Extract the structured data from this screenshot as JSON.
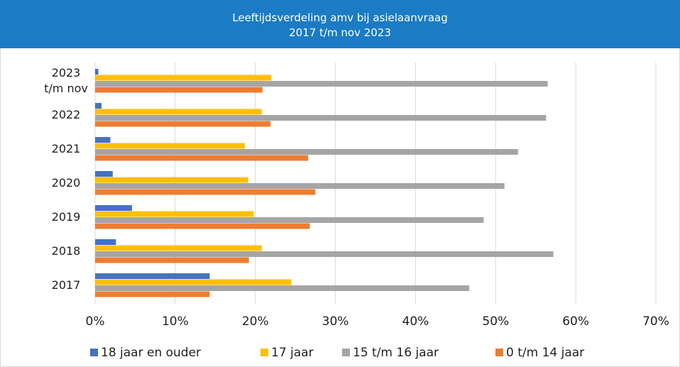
{
  "chart_data": {
    "type": "bar",
    "orientation": "horizontal",
    "title": "Leeftijdsverdeling amv bij asielaanvraag",
    "subtitle": "2017 t/m nov 2023",
    "categories": [
      "2023 t/m nov",
      "2022",
      "2021",
      "2020",
      "2019",
      "2018",
      "2017"
    ],
    "series": [
      {
        "name": "18 jaar en ouder",
        "color": "#4472c4",
        "values": [
          0.4,
          0.8,
          1.9,
          2.2,
          4.6,
          2.6,
          14.3
        ]
      },
      {
        "name": "17 jaar",
        "color": "#ffc000",
        "values": [
          22.0,
          20.8,
          18.7,
          19.1,
          19.8,
          20.8,
          24.5
        ]
      },
      {
        "name": "15 t/m 16 jaar",
        "color": "#a5a5a5",
        "values": [
          56.5,
          56.3,
          52.8,
          51.1,
          48.5,
          57.2,
          46.7
        ]
      },
      {
        "name": "0 t/m 14 jaar",
        "color": "#ed7d31",
        "values": [
          20.9,
          21.9,
          26.6,
          27.5,
          26.8,
          19.2,
          14.3
        ]
      }
    ],
    "xlim": [
      0,
      70
    ],
    "xticks": [
      {
        "value": 0,
        "label": "0%"
      },
      {
        "value": 10,
        "label": "10%"
      },
      {
        "value": 20,
        "label": "20%"
      },
      {
        "value": 30,
        "label": "30%"
      },
      {
        "value": 40,
        "label": "40%"
      },
      {
        "value": 50,
        "label": "50%"
      },
      {
        "value": 60,
        "label": "60%"
      },
      {
        "value": 70,
        "label": "70%"
      }
    ],
    "grid": true,
    "legend": "bottom"
  }
}
